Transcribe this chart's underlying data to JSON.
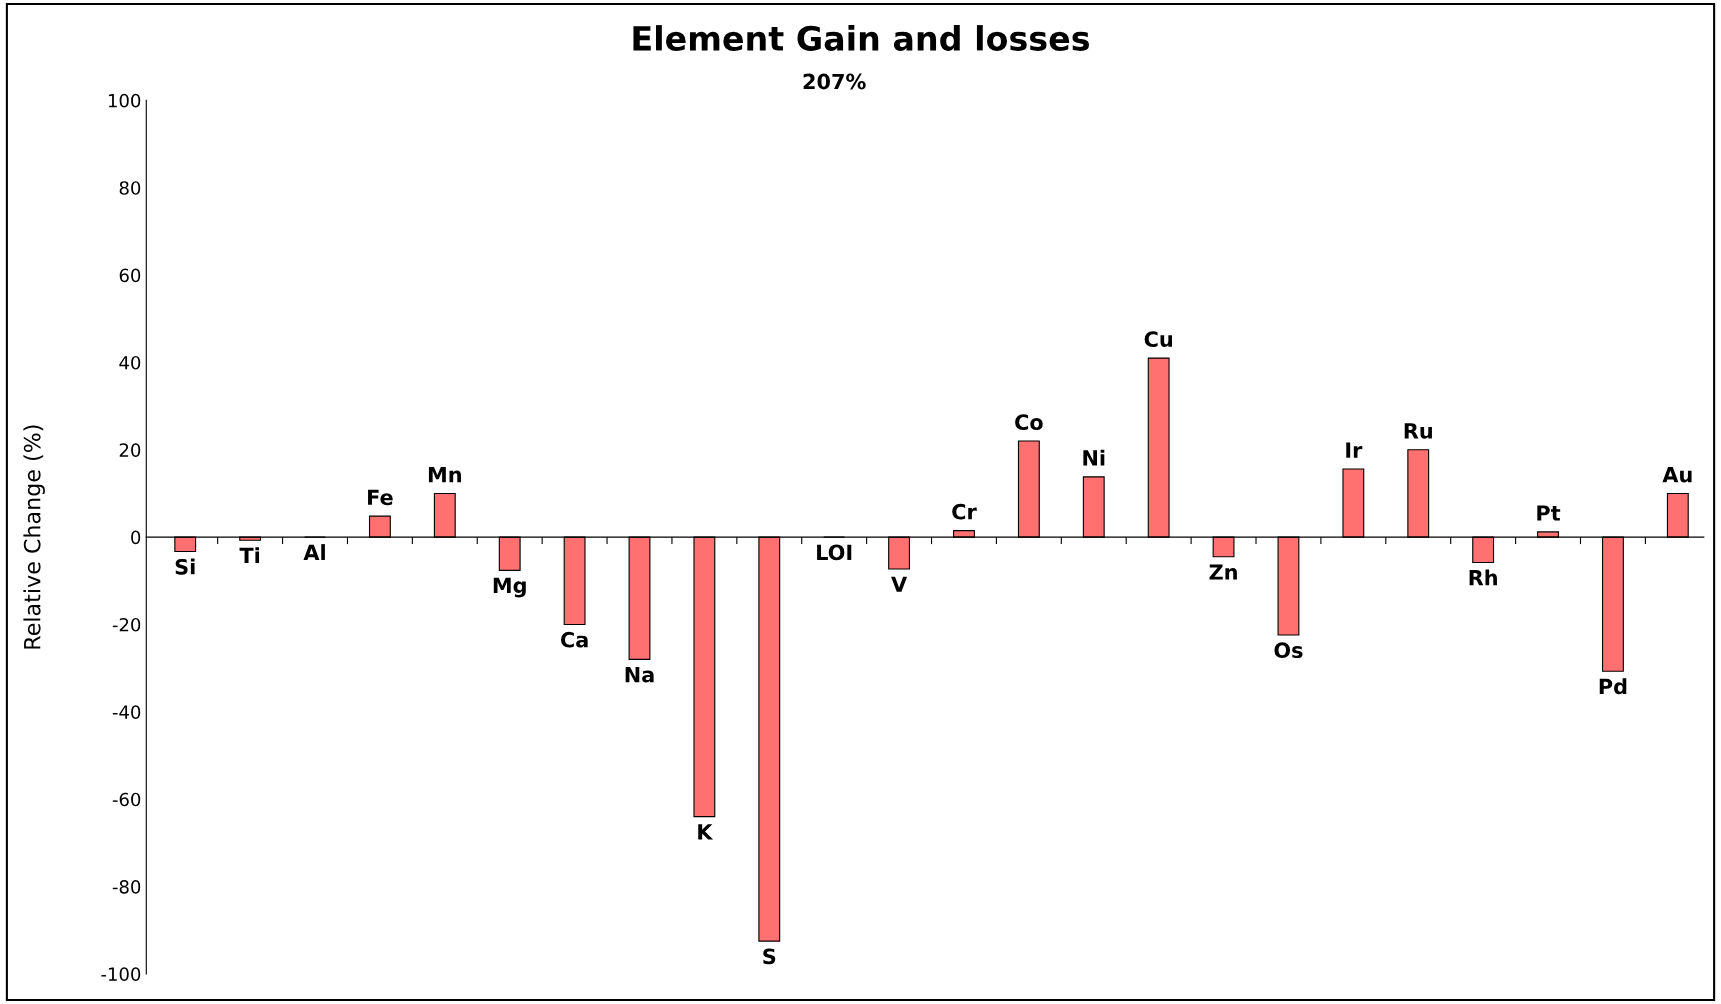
{
  "chart_data": {
    "type": "bar",
    "title": "Element Gain and losses",
    "ylabel": "Relative Change (%)",
    "categories": [
      "Si",
      "Ti",
      "Al",
      "Fe",
      "Mn",
      "Mg",
      "Ca",
      "Na",
      "K",
      "S",
      "LOI",
      "V",
      "Cr",
      "Co",
      "Ni",
      "Cu",
      "Zn",
      "Os",
      "Ir",
      "Ru",
      "Rh",
      "Pt",
      "Pd",
      "Au"
    ],
    "values": [
      -3.3,
      -0.7,
      null,
      4.8,
      10,
      -7.6,
      -20,
      -28,
      -64,
      -92.5,
      null,
      -7.3,
      1.5,
      22,
      13.8,
      41,
      -4.5,
      -22.4,
      15.6,
      20,
      -5.8,
      1.2,
      -30.7,
      10
    ],
    "value_labels": [
      null,
      null,
      null,
      null,
      null,
      null,
      null,
      null,
      null,
      null,
      "207%",
      null,
      null,
      null,
      null,
      null,
      null,
      null,
      null,
      null,
      null,
      null,
      null,
      null
    ],
    "color": "#ff7070",
    "ylim": [
      -100,
      100
    ],
    "yticks": [
      -100,
      -80,
      -60,
      -40,
      -20,
      0,
      20,
      40,
      60,
      80,
      100
    ],
    "grid": false,
    "legend": false
  }
}
